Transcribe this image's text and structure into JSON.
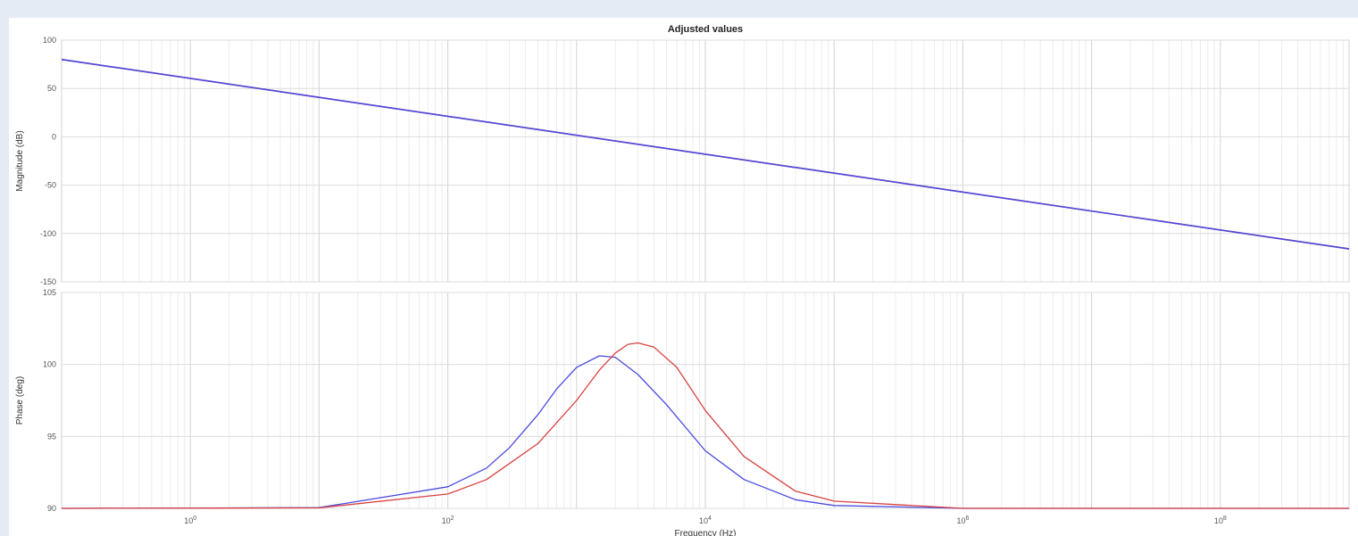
{
  "chart_data": {
    "type": "line",
    "title": "Adjusted values",
    "xlabel": "Frequency  (Hz)",
    "x_scale": "log",
    "xlim": [
      0.1,
      1000000000
    ],
    "x_tick_labels": [
      "10^0",
      "10^2",
      "10^4",
      "10^6",
      "10^8"
    ],
    "grid": true,
    "panels": [
      {
        "ylabel": "Magnitude (dB)",
        "ylim": [
          -150,
          100
        ],
        "y_tick_labels": [
          "100",
          "50",
          "0",
          "-50",
          "-100",
          "-150"
        ],
        "series": [
          {
            "color": "#d94040",
            "x": [
              0.1,
              1000000000
            ],
            "y": [
              80,
              -116
            ]
          },
          {
            "color": "#4a4ae0",
            "x": [
              0.1,
              1000000000
            ],
            "y": [
              80,
              -116
            ]
          }
        ]
      },
      {
        "ylabel": "Phase (deg)",
        "ylim": [
          90,
          105
        ],
        "y_tick_labels": [
          "105",
          "100",
          "95",
          "90"
        ],
        "series": [
          {
            "color": "#4a4ae0",
            "x": [
              0.1,
              10,
              100,
              200,
              300,
              500,
              700,
              1000,
              1500,
              2000,
              3000,
              5000,
              10000,
              20000,
              50000,
              100000,
              1000000,
              1000000000
            ],
            "y": [
              90,
              90.05,
              91.5,
              92.8,
              94.2,
              96.5,
              98.3,
              99.8,
              100.6,
              100.5,
              99.3,
              97.2,
              94.0,
              92.0,
              90.6,
              90.2,
              90.0,
              90
            ]
          },
          {
            "color": "#d94040",
            "x": [
              0.1,
              10,
              100,
              200,
              500,
              1000,
              1500,
              2000,
              2500,
              3000,
              4000,
              6000,
              10000,
              20000,
              50000,
              100000,
              1000000,
              1000000000
            ],
            "y": [
              90,
              90.03,
              91.0,
              92.0,
              94.5,
              97.5,
              99.6,
              100.8,
              101.4,
              101.5,
              101.2,
              99.8,
              96.8,
              93.6,
              91.2,
              90.5,
              90.0,
              90
            ]
          }
        ]
      }
    ]
  }
}
